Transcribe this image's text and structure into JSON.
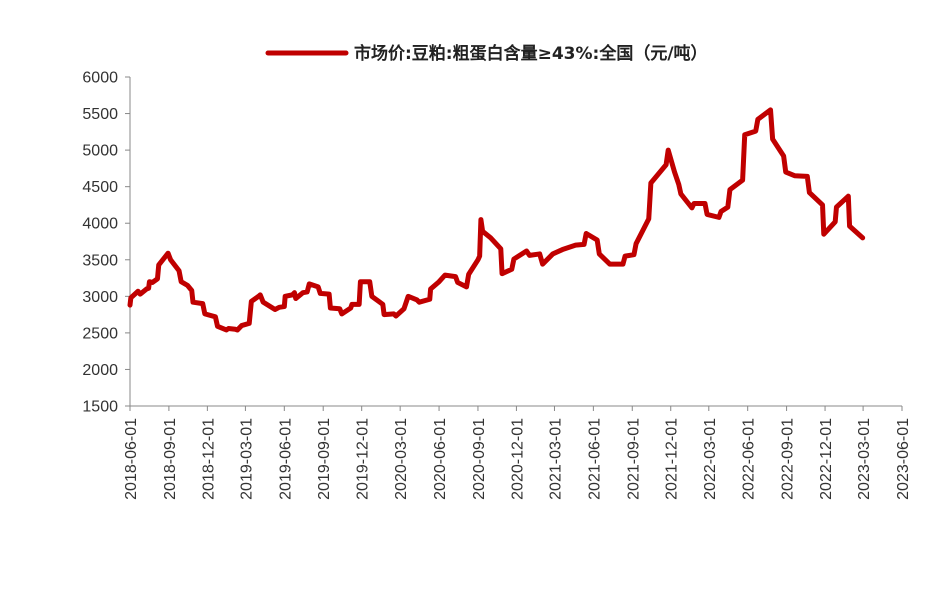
{
  "chart_data": {
    "type": "line",
    "series": [
      {
        "name": "市场价:豆粕:粗蛋白含量≥43%:全国（元/吨）",
        "color": "#C00000",
        "points": [
          [
            "2018-06-01",
            2880
          ],
          [
            "2018-06-03",
            2980
          ],
          [
            "2018-06-20",
            3070
          ],
          [
            "2018-06-25",
            3030
          ],
          [
            "2018-07-10",
            3100
          ],
          [
            "2018-07-15",
            3110
          ],
          [
            "2018-07-17",
            3200
          ],
          [
            "2018-07-24",
            3190
          ],
          [
            "2018-08-05",
            3240
          ],
          [
            "2018-08-08",
            3430
          ],
          [
            "2018-08-30",
            3590
          ],
          [
            "2018-09-05",
            3500
          ],
          [
            "2018-09-25",
            3350
          ],
          [
            "2018-09-30",
            3200
          ],
          [
            "2018-10-15",
            3150
          ],
          [
            "2018-10-25",
            3080
          ],
          [
            "2018-10-28",
            2920
          ],
          [
            "2018-11-20",
            2900
          ],
          [
            "2018-11-25",
            2760
          ],
          [
            "2018-12-20",
            2720
          ],
          [
            "2018-12-25",
            2590
          ],
          [
            "2019-01-15",
            2540
          ],
          [
            "2019-01-20",
            2560
          ],
          [
            "2019-02-05",
            2550
          ],
          [
            "2019-02-10",
            2540
          ],
          [
            "2019-02-20",
            2600
          ],
          [
            "2019-03-10",
            2630
          ],
          [
            "2019-03-15",
            2930
          ],
          [
            "2019-04-01",
            3000
          ],
          [
            "2019-04-05",
            3020
          ],
          [
            "2019-04-12",
            2920
          ],
          [
            "2019-05-10",
            2820
          ],
          [
            "2019-05-20",
            2850
          ],
          [
            "2019-06-01",
            2860
          ],
          [
            "2019-06-03",
            3000
          ],
          [
            "2019-06-20",
            3020
          ],
          [
            "2019-06-25",
            3050
          ],
          [
            "2019-06-28",
            2970
          ],
          [
            "2019-07-15",
            3050
          ],
          [
            "2019-07-25",
            3060
          ],
          [
            "2019-07-30",
            3170
          ],
          [
            "2019-08-20",
            3130
          ],
          [
            "2019-08-25",
            3040
          ],
          [
            "2019-09-15",
            3030
          ],
          [
            "2019-09-18",
            2840
          ],
          [
            "2019-10-10",
            2830
          ],
          [
            "2019-10-15",
            2760
          ],
          [
            "2019-11-05",
            2840
          ],
          [
            "2019-11-08",
            2890
          ],
          [
            "2019-11-25",
            2890
          ],
          [
            "2019-11-28",
            3200
          ],
          [
            "2019-12-20",
            3200
          ],
          [
            "2019-12-25",
            3000
          ],
          [
            "2020-01-20",
            2890
          ],
          [
            "2020-01-23",
            2750
          ],
          [
            "2020-02-15",
            2760
          ],
          [
            "2020-02-20",
            2730
          ],
          [
            "2020-03-10",
            2830
          ],
          [
            "2020-03-20",
            3000
          ],
          [
            "2020-04-10",
            2950
          ],
          [
            "2020-04-15",
            2920
          ],
          [
            "2020-05-10",
            2960
          ],
          [
            "2020-05-12",
            3100
          ],
          [
            "2020-06-01",
            3200
          ],
          [
            "2020-06-15",
            3290
          ],
          [
            "2020-07-10",
            3270
          ],
          [
            "2020-07-15",
            3190
          ],
          [
            "2020-08-05",
            3130
          ],
          [
            "2020-08-10",
            3300
          ],
          [
            "2020-09-01",
            3500
          ],
          [
            "2020-09-05",
            3550
          ],
          [
            "2020-09-08",
            4050
          ],
          [
            "2020-09-12",
            3890
          ],
          [
            "2020-10-01",
            3800
          ],
          [
            "2020-10-25",
            3650
          ],
          [
            "2020-10-28",
            3310
          ],
          [
            "2020-11-20",
            3370
          ],
          [
            "2020-11-25",
            3510
          ],
          [
            "2020-12-25",
            3620
          ],
          [
            "2021-01-01",
            3560
          ],
          [
            "2021-01-25",
            3580
          ],
          [
            "2021-02-01",
            3440
          ],
          [
            "2021-02-25",
            3580
          ],
          [
            "2021-03-20",
            3640
          ],
          [
            "2021-04-20",
            3700
          ],
          [
            "2021-05-10",
            3710
          ],
          [
            "2021-05-15",
            3860
          ],
          [
            "2021-06-10",
            3770
          ],
          [
            "2021-06-15",
            3580
          ],
          [
            "2021-07-10",
            3440
          ],
          [
            "2021-08-10",
            3440
          ],
          [
            "2021-08-15",
            3550
          ],
          [
            "2021-09-05",
            3570
          ],
          [
            "2021-09-10",
            3720
          ],
          [
            "2021-10-10",
            4060
          ],
          [
            "2021-10-15",
            4550
          ],
          [
            "2021-11-20",
            4800
          ],
          [
            "2021-11-25",
            5000
          ],
          [
            "2021-12-10",
            4700
          ],
          [
            "2021-12-20",
            4530
          ],
          [
            "2021-12-25",
            4400
          ],
          [
            "2022-01-20",
            4210
          ],
          [
            "2022-01-25",
            4270
          ],
          [
            "2022-02-20",
            4270
          ],
          [
            "2022-02-25",
            4120
          ],
          [
            "2022-03-25",
            4080
          ],
          [
            "2022-03-30",
            4160
          ],
          [
            "2022-04-15",
            4220
          ],
          [
            "2022-04-20",
            4460
          ],
          [
            "2022-05-20",
            4590
          ],
          [
            "2022-05-25",
            5210
          ],
          [
            "2022-06-20",
            5260
          ],
          [
            "2022-06-25",
            5420
          ],
          [
            "2022-07-25",
            5550
          ],
          [
            "2022-07-30",
            5150
          ],
          [
            "2022-08-25",
            4920
          ],
          [
            "2022-08-30",
            4700
          ],
          [
            "2022-09-20",
            4650
          ],
          [
            "2022-10-20",
            4640
          ],
          [
            "2022-10-25",
            4420
          ],
          [
            "2022-11-25",
            4250
          ],
          [
            "2022-11-28",
            3850
          ],
          [
            "2022-12-25",
            4020
          ],
          [
            "2022-12-28",
            4220
          ],
          [
            "2023-01-25",
            4370
          ],
          [
            "2023-01-28",
            3960
          ],
          [
            "2023-02-28",
            3800
          ]
        ]
      }
    ],
    "x_ticks": [
      "2018-06-01",
      "2018-09-01",
      "2018-12-01",
      "2019-03-01",
      "2019-06-01",
      "2019-09-01",
      "2019-12-01",
      "2020-03-01",
      "2020-06-01",
      "2020-09-01",
      "2020-12-01",
      "2021-03-01",
      "2021-06-01",
      "2021-09-01",
      "2021-12-01",
      "2022-03-01",
      "2022-06-01",
      "2022-09-01",
      "2022-12-01",
      "2023-03-01",
      "2023-06-01"
    ],
    "x_range": [
      "2018-06-01",
      "2023-06-01"
    ],
    "ylim": [
      1500,
      6000
    ],
    "y_ticks": [
      1500,
      2000,
      2500,
      3000,
      3500,
      4000,
      4500,
      5000,
      5500,
      6000
    ],
    "title": "",
    "xlabel": "",
    "ylabel": "",
    "grid": false,
    "legend_position": "top"
  }
}
